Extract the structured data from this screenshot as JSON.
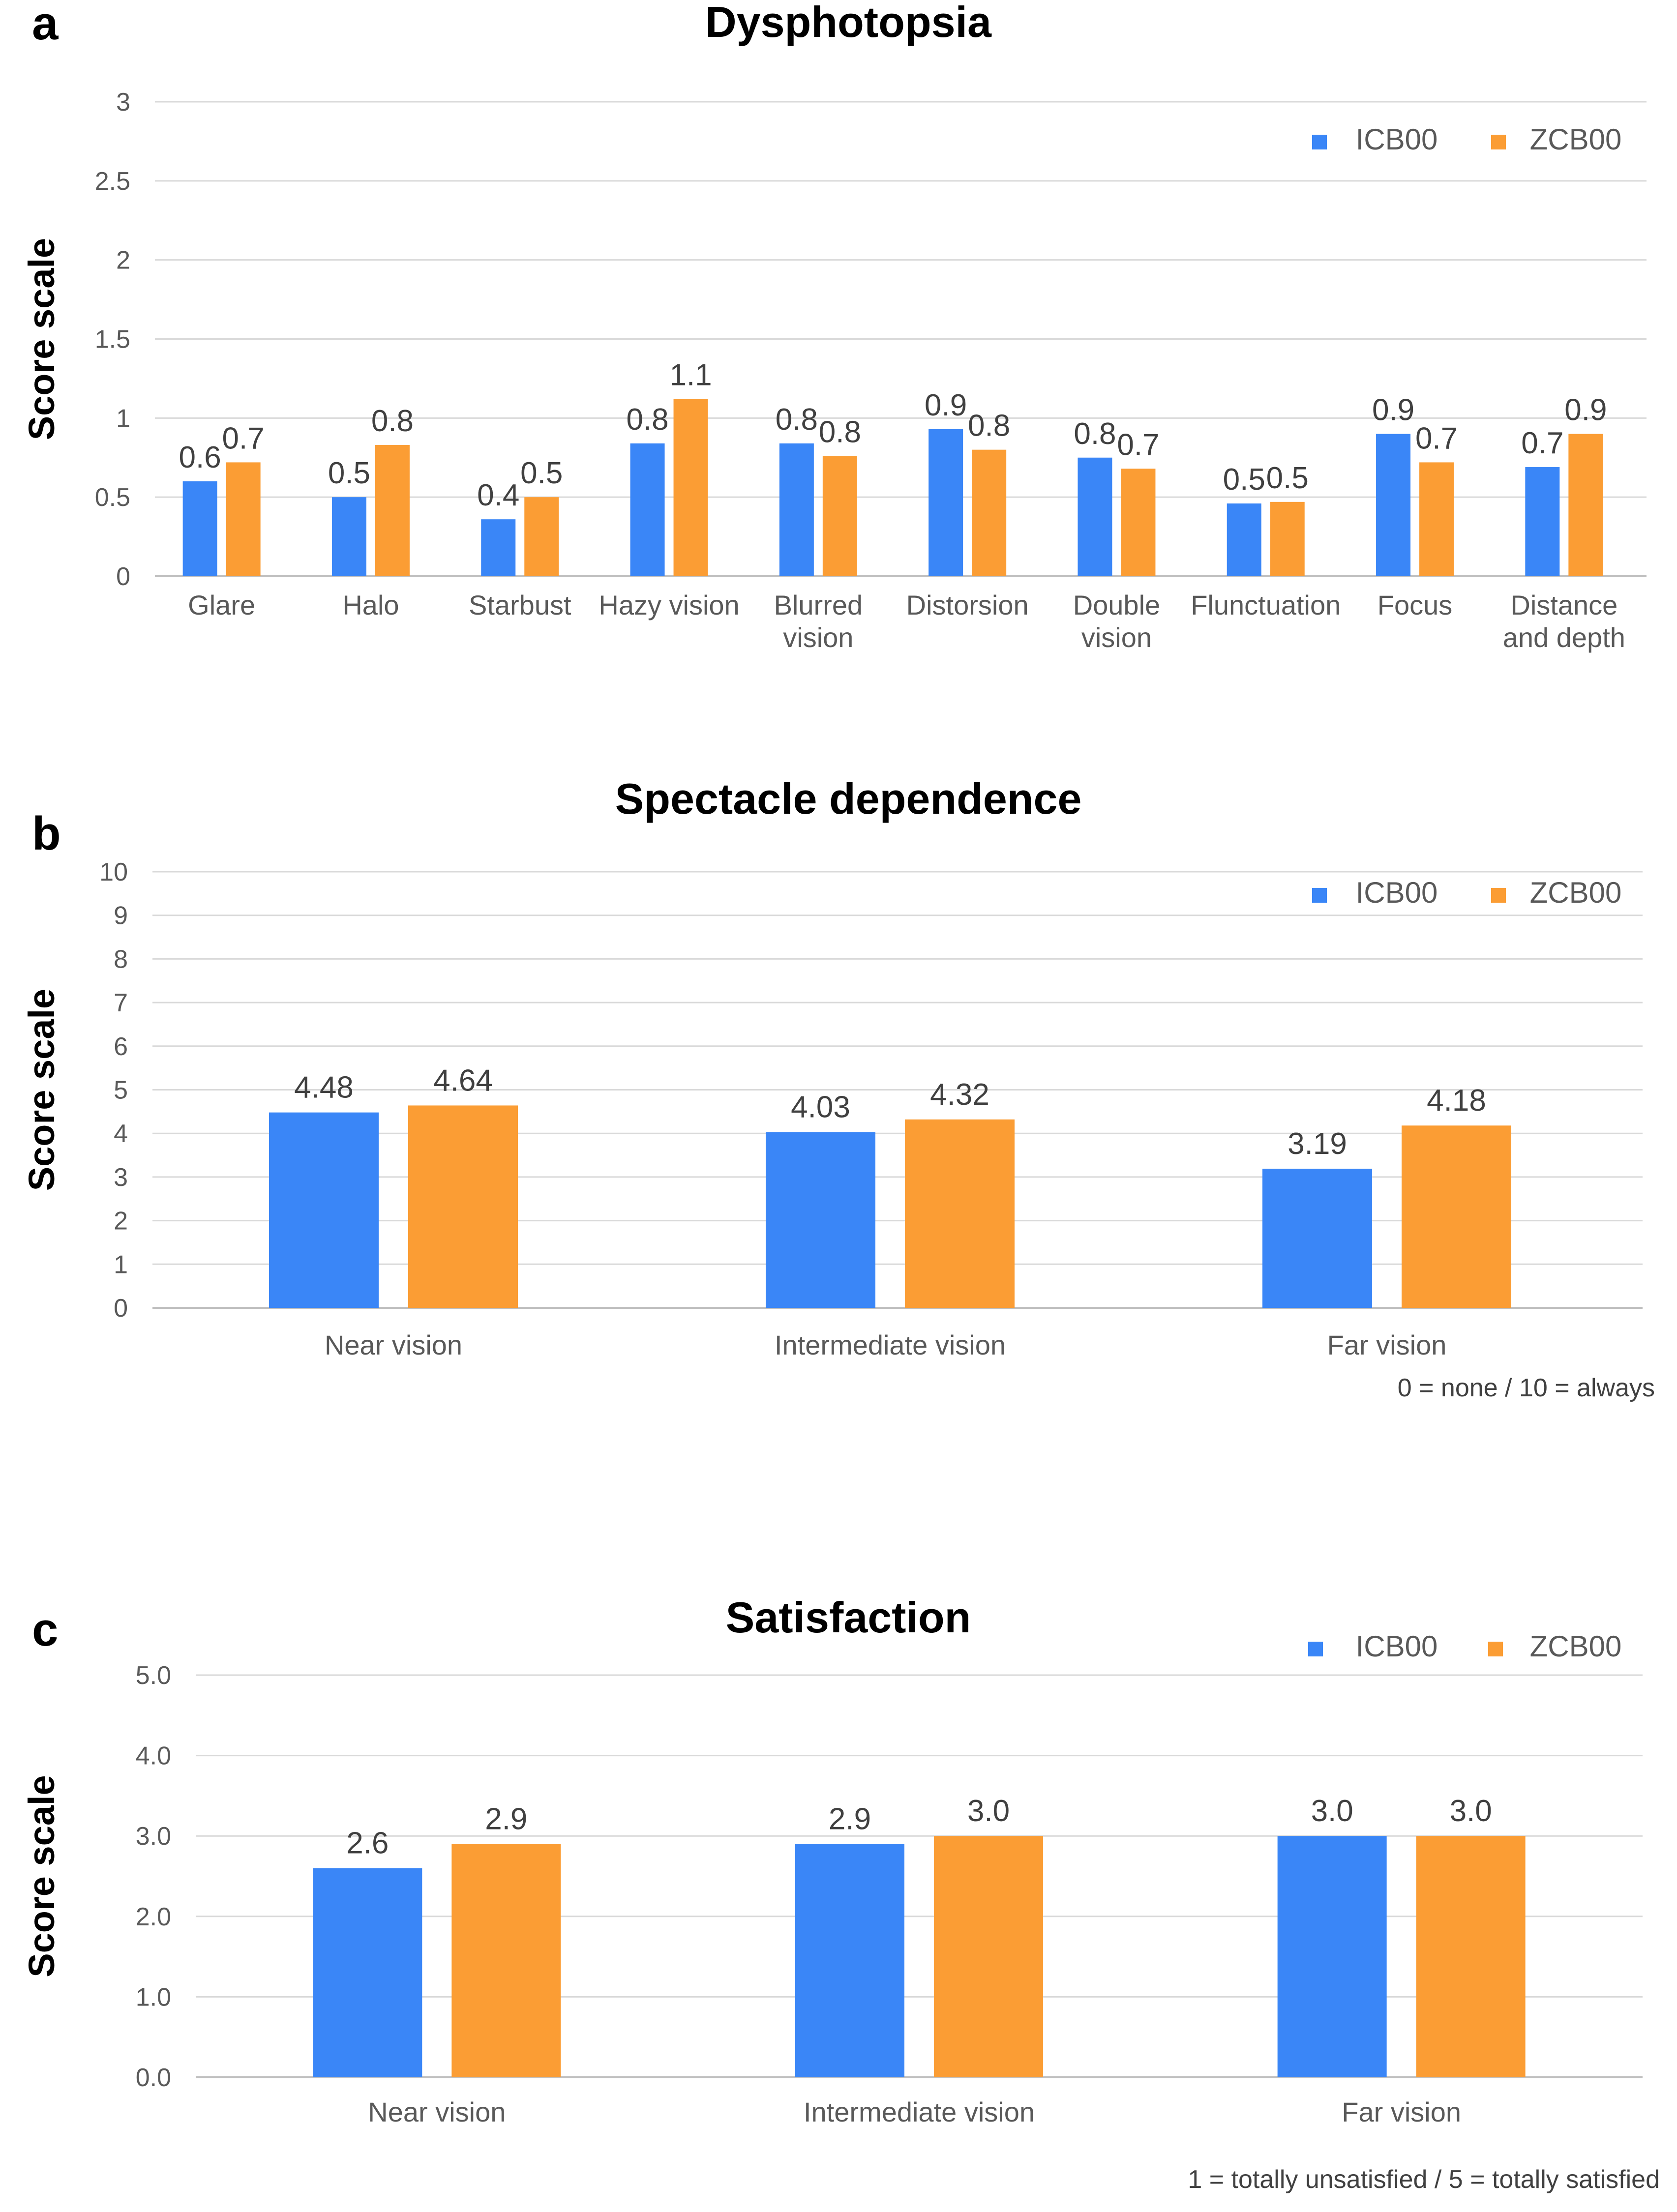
{
  "colors": {
    "icb": "#3a86f7",
    "zcb": "#fb9d34"
  },
  "chart_data": [
    {
      "type": "bar",
      "panel": "a",
      "title": "Dysphotopsia",
      "ylabel": "Score scale",
      "xlabel": "",
      "ylim": [
        0,
        3
      ],
      "yticks": [
        "0",
        "0.5",
        "1",
        "1.5",
        "2",
        "2.5",
        "3"
      ],
      "categories": [
        [
          "Glare"
        ],
        [
          "Halo"
        ],
        [
          "Starbust"
        ],
        [
          "Hazy vision"
        ],
        [
          "Blurred",
          "vision"
        ],
        [
          "Distorsion"
        ],
        [
          "Double",
          "vision"
        ],
        [
          "Flunctuation"
        ],
        [
          "Focus"
        ],
        [
          "Distance",
          "and depth"
        ]
      ],
      "series": [
        {
          "name": "ICB00",
          "values": [
            0.6,
            0.5,
            0.36,
            0.84,
            0.84,
            0.93,
            0.75,
            0.46,
            0.9,
            0.69
          ],
          "labels": [
            "0.6",
            "0.5",
            "0.4",
            "0.8",
            "0.8",
            "0.9",
            "0.8",
            "0.5",
            "0.9",
            "0.7"
          ]
        },
        {
          "name": "ZCB00",
          "values": [
            0.72,
            0.83,
            0.5,
            1.12,
            0.76,
            0.8,
            0.68,
            0.47,
            0.72,
            0.9
          ],
          "labels": [
            "0.7",
            "0.8",
            "0.5",
            "1.1",
            "0.8",
            "0.8",
            "0.7",
            "0.5",
            "0.7",
            "0.9"
          ]
        }
      ],
      "legend": [
        "ICB00",
        "ZCB00"
      ],
      "note": ""
    },
    {
      "type": "bar",
      "panel": "b",
      "title": "Spectacle dependence",
      "ylabel": "Score scale",
      "xlabel": "",
      "ylim": [
        0,
        10
      ],
      "yticks": [
        "0",
        "1",
        "2",
        "3",
        "4",
        "5",
        "6",
        "7",
        "8",
        "9",
        "10"
      ],
      "categories": [
        [
          "Near vision"
        ],
        [
          "Intermediate vision"
        ],
        [
          "Far vision"
        ]
      ],
      "series": [
        {
          "name": "ICB00",
          "values": [
            4.48,
            4.03,
            3.19
          ],
          "labels": [
            "4.48",
            "4.03",
            "3.19"
          ]
        },
        {
          "name": "ZCB00",
          "values": [
            4.64,
            4.32,
            4.18
          ],
          "labels": [
            "4.64",
            "4.32",
            "4.18"
          ]
        }
      ],
      "legend": [
        "ICB00",
        "ZCB00"
      ],
      "note": "0 = none / 10 = always"
    },
    {
      "type": "bar",
      "panel": "c",
      "title": "Satisfaction",
      "ylabel": "Score scale",
      "xlabel": "",
      "ylim": [
        0,
        5
      ],
      "yticks": [
        "0.0",
        "1.0",
        "2.0",
        "3.0",
        "4.0",
        "5.0"
      ],
      "categories": [
        [
          "Near vision"
        ],
        [
          "Intermediate vision"
        ],
        [
          "Far vision"
        ]
      ],
      "series": [
        {
          "name": "ICB00",
          "values": [
            2.6,
            2.9,
            3.0
          ],
          "labels": [
            "2.6",
            "2.9",
            "3.0"
          ]
        },
        {
          "name": "ZCB00",
          "values": [
            2.9,
            3.0,
            3.0
          ],
          "labels": [
            "2.9",
            "3.0",
            "3.0"
          ]
        }
      ],
      "legend": [
        "ICB00",
        "ZCB00"
      ],
      "note": "1 = totally unsatisfied / 5 = totally satisfied"
    }
  ]
}
